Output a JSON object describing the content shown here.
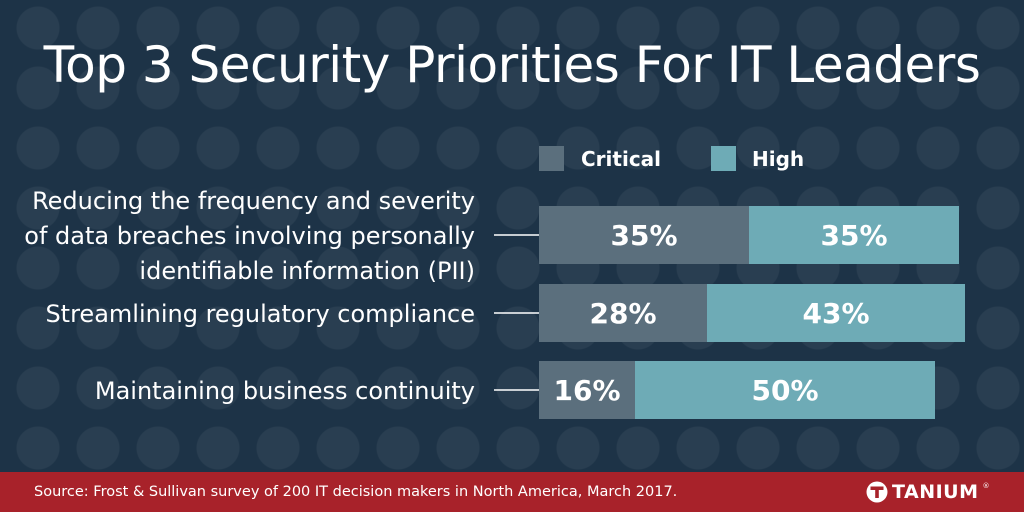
{
  "title": "Top 3 Security Priorities For IT Leaders",
  "footer": {
    "source": "Source: Frost & Sullivan survey of 200 IT decision makers in North America, March 2017.",
    "logo_text": "TANIUM",
    "logo_reg": "®"
  },
  "colors": {
    "background": "#1d3347",
    "critical": "#5b6f7d",
    "high": "#6eabb6",
    "footer": "#a8222a",
    "text": "#ffffff"
  },
  "chart_data": {
    "type": "bar",
    "orientation": "horizontal",
    "stacked": true,
    "title": "Top 3 Security Priorities For IT Leaders",
    "legend_position": "top",
    "categories": [
      [
        "Reducing the frequency and severity",
        "of data breaches involving personally",
        "identifiable information (PII)"
      ],
      [
        "Streamlining regulatory compliance"
      ],
      [
        "Maintaining business continuity"
      ]
    ],
    "series": [
      {
        "name": "Critical",
        "values": [
          35,
          28,
          16
        ],
        "labels": [
          "35%",
          "28%",
          "16%"
        ],
        "color": "#5b6f7d"
      },
      {
        "name": "High",
        "values": [
          35,
          43,
          50
        ],
        "labels": [
          "35%",
          "43%",
          "50%"
        ],
        "color": "#6eabb6"
      }
    ],
    "xlim": [
      0,
      72
    ],
    "unit": "%"
  }
}
